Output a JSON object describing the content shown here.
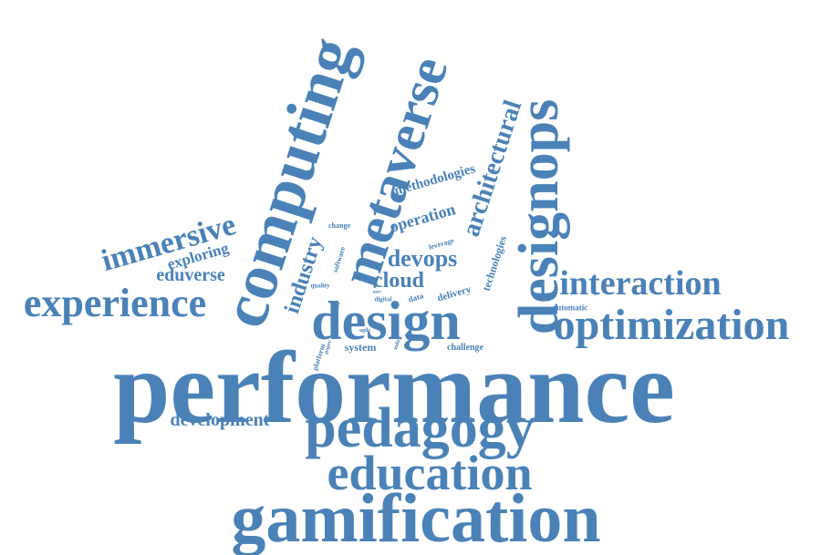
{
  "colors": {
    "word": "#4a82b8",
    "background": "#ffffff"
  },
  "words": [
    "performance",
    "gamification",
    "pedagogy",
    "education",
    "optimization",
    "design",
    "designops",
    "computing",
    "metaverse",
    "experience",
    "interaction",
    "immersive",
    "architectural",
    "devops",
    "cloud",
    "industry",
    "eduverse",
    "development",
    "exploring",
    "operation",
    "methodologies",
    "technologies",
    "system",
    "delivery",
    "challenge",
    "automatic",
    "leverage",
    "data",
    "digital",
    "software",
    "quality",
    "platform",
    "agile",
    "change",
    "entire",
    "paper",
    "today",
    "user"
  ]
}
